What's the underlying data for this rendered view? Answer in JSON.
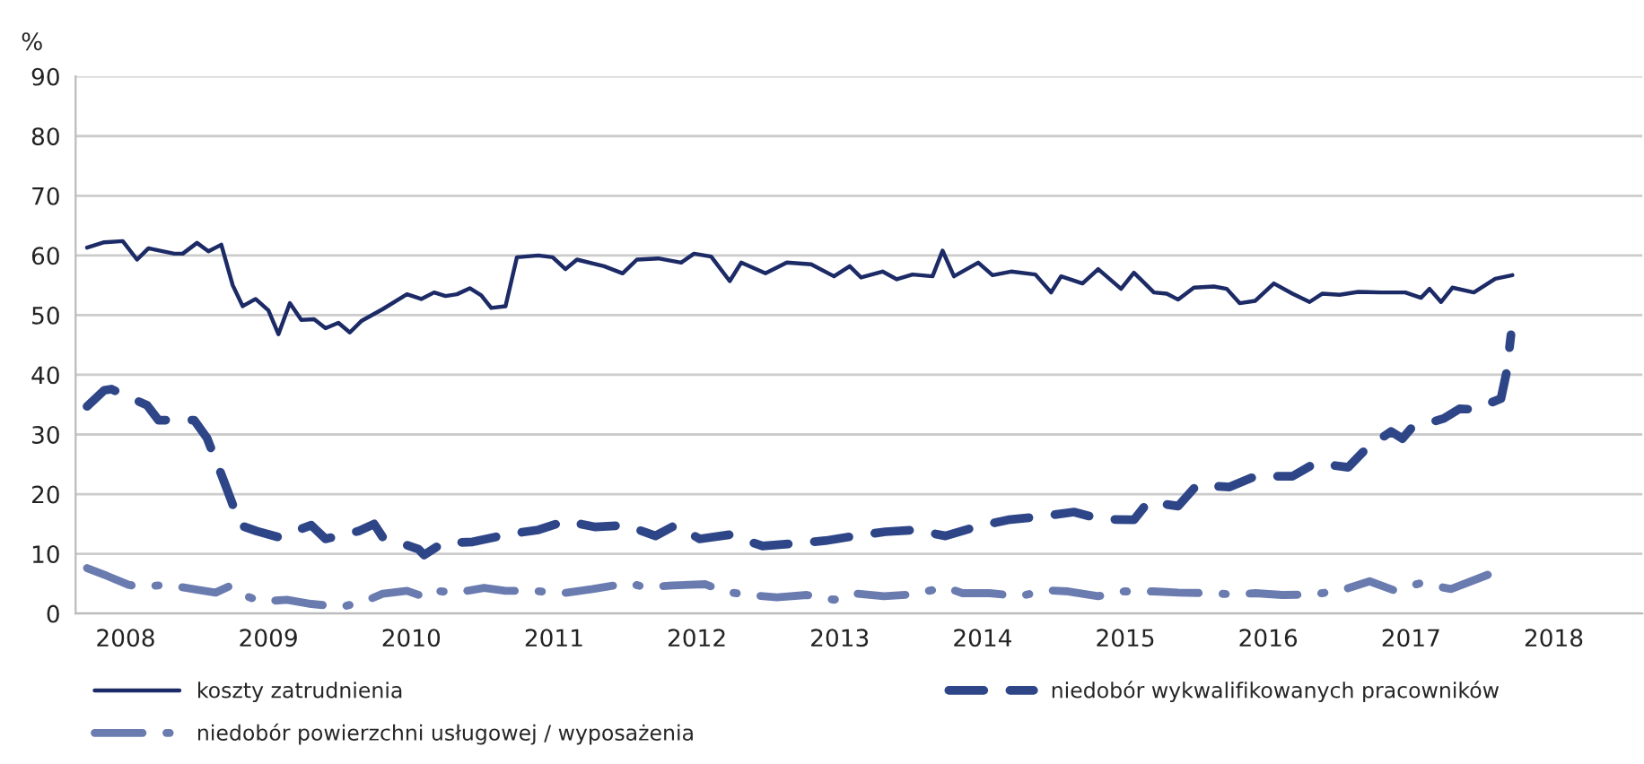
{
  "chart_data": {
    "type": "line",
    "ylabel": "%",
    "xlim": [
      2008.15,
      2019.12
    ],
    "xticks": [
      {
        "value": 2008.5,
        "label": "2008"
      },
      {
        "value": 2009.5,
        "label": "2009"
      },
      {
        "value": 2010.5,
        "label": "2010"
      },
      {
        "value": 2011.5,
        "label": "2011"
      },
      {
        "value": 2012.5,
        "label": "2012"
      },
      {
        "value": 2013.5,
        "label": "2013"
      },
      {
        "value": 2014.5,
        "label": "2014"
      },
      {
        "value": 2015.5,
        "label": "2015"
      },
      {
        "value": 2016.5,
        "label": "2016"
      },
      {
        "value": 2017.5,
        "label": "2017"
      },
      {
        "value": 2018.5,
        "label": "2018"
      }
    ],
    "ylim": [
      0,
      90
    ],
    "yticks": [
      0,
      10,
      20,
      30,
      40,
      50,
      60,
      70,
      80,
      90
    ],
    "grid": "y",
    "legend": "bottom",
    "series": [
      {
        "name": "koszty zatrudnienia",
        "color": "#1c2a66",
        "line_style": "solid",
        "x": [
          2008.23,
          2008.35,
          2008.48,
          2008.58,
          2008.66,
          2008.84,
          2008.9,
          2009.0,
          2009.08,
          2009.17,
          2009.25,
          2009.32,
          2009.41,
          2009.5,
          2009.57,
          2009.65,
          2009.73,
          2009.82,
          2009.9,
          2009.99,
          2010.07,
          2010.15,
          2010.3,
          2010.47,
          2010.57,
          2010.66,
          2010.74,
          2010.82,
          2010.91,
          2010.99,
          2011.06,
          2011.16,
          2011.24,
          2011.39,
          2011.49,
          2011.58,
          2011.66,
          2011.85,
          2011.98,
          2012.08,
          2012.23,
          2012.39,
          2012.48,
          2012.6,
          2012.73,
          2012.81,
          2012.98,
          2013.13,
          2013.3,
          2013.46,
          2013.57,
          2013.65,
          2013.8,
          2013.9,
          2014.01,
          2014.15,
          2014.22,
          2014.3,
          2014.47,
          2014.57,
          2014.7,
          2014.87,
          2014.98,
          2015.05,
          2015.2,
          2015.31,
          2015.47,
          2015.56,
          2015.7,
          2015.79,
          2015.87,
          2015.98,
          2016.12,
          2016.21,
          2016.3,
          2016.41,
          2016.54,
          2016.67,
          2016.79,
          2016.88,
          2017.0,
          2017.13,
          2017.29,
          2017.46,
          2017.57,
          2017.63,
          2017.71,
          2017.79,
          2017.94,
          2018.09,
          2018.21
        ],
        "values": [
          61.3,
          62.2,
          62.4,
          59.3,
          61.2,
          60.3,
          60.3,
          62.1,
          60.7,
          61.8,
          55,
          51.5,
          52.7,
          50.8,
          46.8,
          52,
          49.2,
          49.3,
          47.8,
          48.7,
          47.1,
          49,
          51,
          53.5,
          52.7,
          53.8,
          53.2,
          53.5,
          54.5,
          53.3,
          51.2,
          51.5,
          59.7,
          60,
          59.7,
          57.7,
          59.3,
          58.2,
          57,
          59.3,
          59.5,
          58.8,
          60.3,
          59.8,
          55.7,
          58.8,
          57,
          58.8,
          58.5,
          56.5,
          58.2,
          56.3,
          57.3,
          56,
          56.8,
          56.5,
          60.8,
          56.5,
          58.8,
          56.7,
          57.3,
          56.8,
          53.8,
          56.5,
          55.3,
          57.7,
          54.4,
          57.1,
          53.8,
          53.6,
          52.6,
          54.6,
          54.8,
          54.4,
          52,
          52.4,
          55.3,
          53.6,
          52.2,
          53.6,
          53.4,
          53.9,
          53.8,
          53.8,
          52.9,
          54.4,
          52.2,
          54.6,
          53.8,
          56.1,
          56.7
        ]
      },
      {
        "name": "niedobór wykwalifikowanych pracowników",
        "color": "#2e4688",
        "line_style": "dashed",
        "x": [
          2008.23,
          2008.35,
          2008.4,
          2008.65,
          2008.73,
          2008.98,
          2009.07,
          2009.17,
          2009.24,
          2009.3,
          2009.42,
          2009.57,
          2009.8,
          2009.9,
          2010.13,
          2010.24,
          2010.3,
          2010.55,
          2010.59,
          2010.72,
          2010.93,
          2011.18,
          2011.39,
          2011.58,
          2011.79,
          2012.0,
          2012.21,
          2012.35,
          2012.52,
          2012.73,
          2012.96,
          2013.17,
          2013.4,
          2013.61,
          2013.82,
          2014.03,
          2014.24,
          2014.45,
          2014.68,
          2014.89,
          2015.14,
          2015.33,
          2015.56,
          2015.66,
          2015.87,
          2016.0,
          2016.23,
          2016.41,
          2016.67,
          2016.83,
          2017.06,
          2017.19,
          2017.36,
          2017.44,
          2017.5,
          2017.73,
          2017.84,
          2017.94,
          2018.13,
          2018.17,
          2018.2
        ],
        "values": [
          34.7,
          37.4,
          37.6,
          34.9,
          32.4,
          32.4,
          29.4,
          23.3,
          18.9,
          14.8,
          13.8,
          12.8,
          14.8,
          12.5,
          13.8,
          15,
          12.8,
          10.8,
          9.8,
          11.8,
          12,
          13.3,
          14,
          15.5,
          14.5,
          14.8,
          13,
          14.8,
          12.5,
          13.2,
          11.3,
          11.7,
          12.2,
          13,
          13.7,
          14,
          13,
          14.5,
          15.7,
          16.2,
          17,
          15.8,
          15.7,
          18.7,
          18,
          21.5,
          21.2,
          23,
          23,
          25.2,
          24.5,
          27.7,
          30.5,
          29.3,
          31,
          32.7,
          34.3,
          34.2,
          36,
          40.5,
          46.7
        ]
      },
      {
        "name": "niedobór powierzchni usługowej / wyposażenia",
        "color": "#6a7bb0",
        "line_style": "dashdot",
        "x": [
          2008.23,
          2008.37,
          2008.52,
          2008.6,
          2008.79,
          2009.0,
          2009.13,
          2009.23,
          2009.3,
          2009.45,
          2009.63,
          2009.8,
          2010.01,
          2010.17,
          2010.3,
          2010.47,
          2010.59,
          2010.66,
          2010.82,
          2011.01,
          2011.16,
          2011.35,
          2011.56,
          2011.77,
          2012.02,
          2012.14,
          2012.33,
          2012.56,
          2012.69,
          2012.86,
          2013.06,
          2013.27,
          2013.46,
          2013.59,
          2013.81,
          2014.01,
          2014.24,
          2014.36,
          2014.55,
          2014.76,
          2014.95,
          2015.1,
          2015.31,
          2015.49,
          2015.7,
          2015.87,
          2016.08,
          2016.27,
          2016.41,
          2016.6,
          2016.83,
          2017.04,
          2017.21,
          2017.38,
          2017.57,
          2017.78,
          2018.05,
          2018.11
        ],
        "values": [
          7.6,
          6.3,
          4.8,
          4.5,
          4.8,
          4,
          3.5,
          4.6,
          3.3,
          2,
          2.3,
          1.6,
          1.1,
          2,
          3.3,
          3.8,
          2.8,
          3.8,
          3.5,
          4.3,
          3.8,
          3.8,
          3.4,
          4.1,
          5.1,
          4.4,
          4.7,
          4.9,
          3.7,
          3.1,
          2.7,
          3.1,
          2.3,
          3.4,
          2.9,
          3.2,
          4.4,
          3.4,
          3.4,
          2.9,
          3.9,
          3.7,
          2.9,
          3.7,
          3.7,
          3.5,
          3.4,
          3.2,
          3.4,
          3.1,
          3.2,
          4.1,
          5.4,
          3.9,
          5.1,
          4.1,
          6.6,
          5.9
        ]
      }
    ]
  }
}
